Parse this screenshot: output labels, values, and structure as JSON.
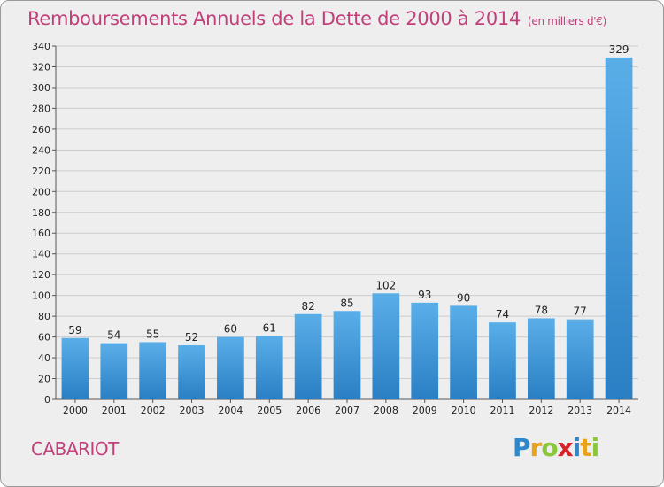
{
  "header": {
    "title": "Remboursements Annuels de la Dette de 2000 à 2014",
    "unit": "(en milliers d'€)"
  },
  "footer": {
    "commune": "CABARIOT",
    "logo_letters": [
      {
        "ch": "P",
        "color": "#2f86c8"
      },
      {
        "ch": "r",
        "color": "#e8a21c"
      },
      {
        "ch": "o",
        "color": "#8cc63f"
      },
      {
        "ch": "x",
        "color": "#d8232a"
      },
      {
        "ch": "i",
        "color": "#2f86c8"
      },
      {
        "ch": "t",
        "color": "#e8a21c"
      },
      {
        "ch": "i",
        "color": "#8cc63f"
      }
    ]
  },
  "colors": {
    "bar_top": "#5aaee8",
    "bar_bottom": "#2a7fc4",
    "grid": "#cccccc",
    "accent": "#c0407a"
  },
  "chart_data": {
    "type": "bar",
    "title": "Remboursements Annuels de la Dette de 2000 à 2014",
    "subtitle": "(en milliers d'€)",
    "xlabel": "",
    "ylabel": "",
    "categories": [
      "2000",
      "2001",
      "2002",
      "2003",
      "2004",
      "2005",
      "2006",
      "2007",
      "2008",
      "2009",
      "2010",
      "2011",
      "2012",
      "2013",
      "2014"
    ],
    "values": [
      59,
      54,
      55,
      52,
      60,
      61,
      82,
      85,
      102,
      93,
      90,
      74,
      78,
      77,
      329
    ],
    "ylim": [
      0,
      340
    ],
    "ytick_step": 20,
    "grid": true,
    "legend": "none"
  }
}
